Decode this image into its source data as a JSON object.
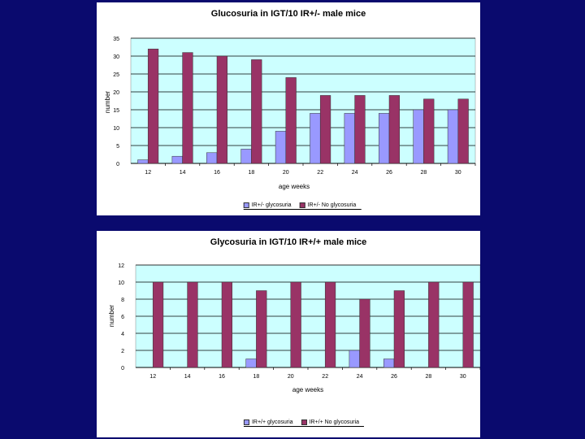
{
  "colors": {
    "background": "#0a0a6e",
    "plot_area": "#ccffff",
    "series_light": "#9999ff",
    "series_dark": "#993366"
  },
  "chart_data": [
    {
      "type": "bar",
      "title": "Glucosuria in IGT/10 IR+/- male mice",
      "xlabel": "age weeks",
      "ylabel": "number",
      "ylim": [
        0,
        35
      ],
      "yticks": [
        0,
        5,
        10,
        15,
        20,
        25,
        30,
        35
      ],
      "categories": [
        "12",
        "14",
        "16",
        "18",
        "20",
        "22",
        "24",
        "26",
        "28",
        "30"
      ],
      "series": [
        {
          "name": "IR+/- glycosuria",
          "values": [
            1,
            2,
            3,
            4,
            9,
            14,
            14,
            14,
            15,
            15
          ]
        },
        {
          "name": "IR+/- No glycosuria",
          "values": [
            32,
            31,
            30,
            29,
            24,
            19,
            19,
            19,
            18,
            18
          ]
        }
      ],
      "grid": "horizontal",
      "legend": "bottom"
    },
    {
      "type": "bar",
      "title": "Glycosuria in IGT/10 IR+/+ male mice",
      "xlabel": "age weeks",
      "ylabel": "number",
      "ylim": [
        0,
        12
      ],
      "yticks": [
        0,
        2,
        4,
        6,
        8,
        10,
        12
      ],
      "categories": [
        "12",
        "14",
        "16",
        "18",
        "20",
        "22",
        "24",
        "26",
        "28",
        "30"
      ],
      "series": [
        {
          "name": "IR+/+ glycosuria",
          "values": [
            0,
            0,
            0,
            1,
            0,
            0,
            2,
            1,
            0,
            0
          ]
        },
        {
          "name": "IR+/+ No glycosuria",
          "values": [
            10,
            10,
            10,
            9,
            10,
            10,
            8,
            9,
            10,
            10
          ]
        }
      ],
      "grid": "horizontal",
      "legend": "bottom"
    }
  ]
}
